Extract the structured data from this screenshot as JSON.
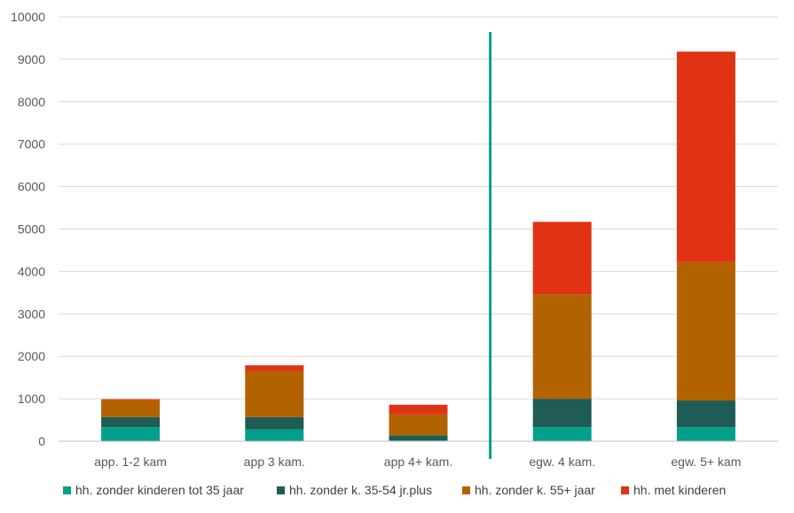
{
  "chart_data": {
    "type": "bar",
    "stacked": true,
    "title": "",
    "xlabel": "",
    "ylabel": "",
    "ylim": [
      0,
      10000
    ],
    "yticks": [
      0,
      1000,
      2000,
      3000,
      4000,
      5000,
      6000,
      7000,
      8000,
      9000,
      10000
    ],
    "grid": true,
    "legend_position": "bottom",
    "categories": [
      "app. 1-2 kam",
      "app 3 kam.",
      "app 4+ kam.",
      "egw. 4 kam.",
      "egw. 5+ kam"
    ],
    "divider_between": [
      "app 4+ kam.",
      "egw. 4 kam."
    ],
    "series": [
      {
        "name": "hh. zonder kinderen tot 35 jaar",
        "color": "#00A08A",
        "values": [
          330,
          280,
          20,
          330,
          330
        ]
      },
      {
        "name": "hh. zonder k. 35-54 jr.plus",
        "color": "#1E5C55",
        "values": [
          240,
          290,
          120,
          670,
          630
        ]
      },
      {
        "name": "hh. zonder k. 55+ jaar",
        "color": "#B36200",
        "values": [
          400,
          1090,
          490,
          2460,
          3260
        ]
      },
      {
        "name": "hh. met kinderen",
        "color": "#E03214",
        "values": [
          20,
          130,
          230,
          1710,
          4960
        ]
      }
    ],
    "colors": {
      "gridline": "#d9d9d9",
      "axis": "#bfbfbf",
      "divider": "#00A08A"
    }
  }
}
